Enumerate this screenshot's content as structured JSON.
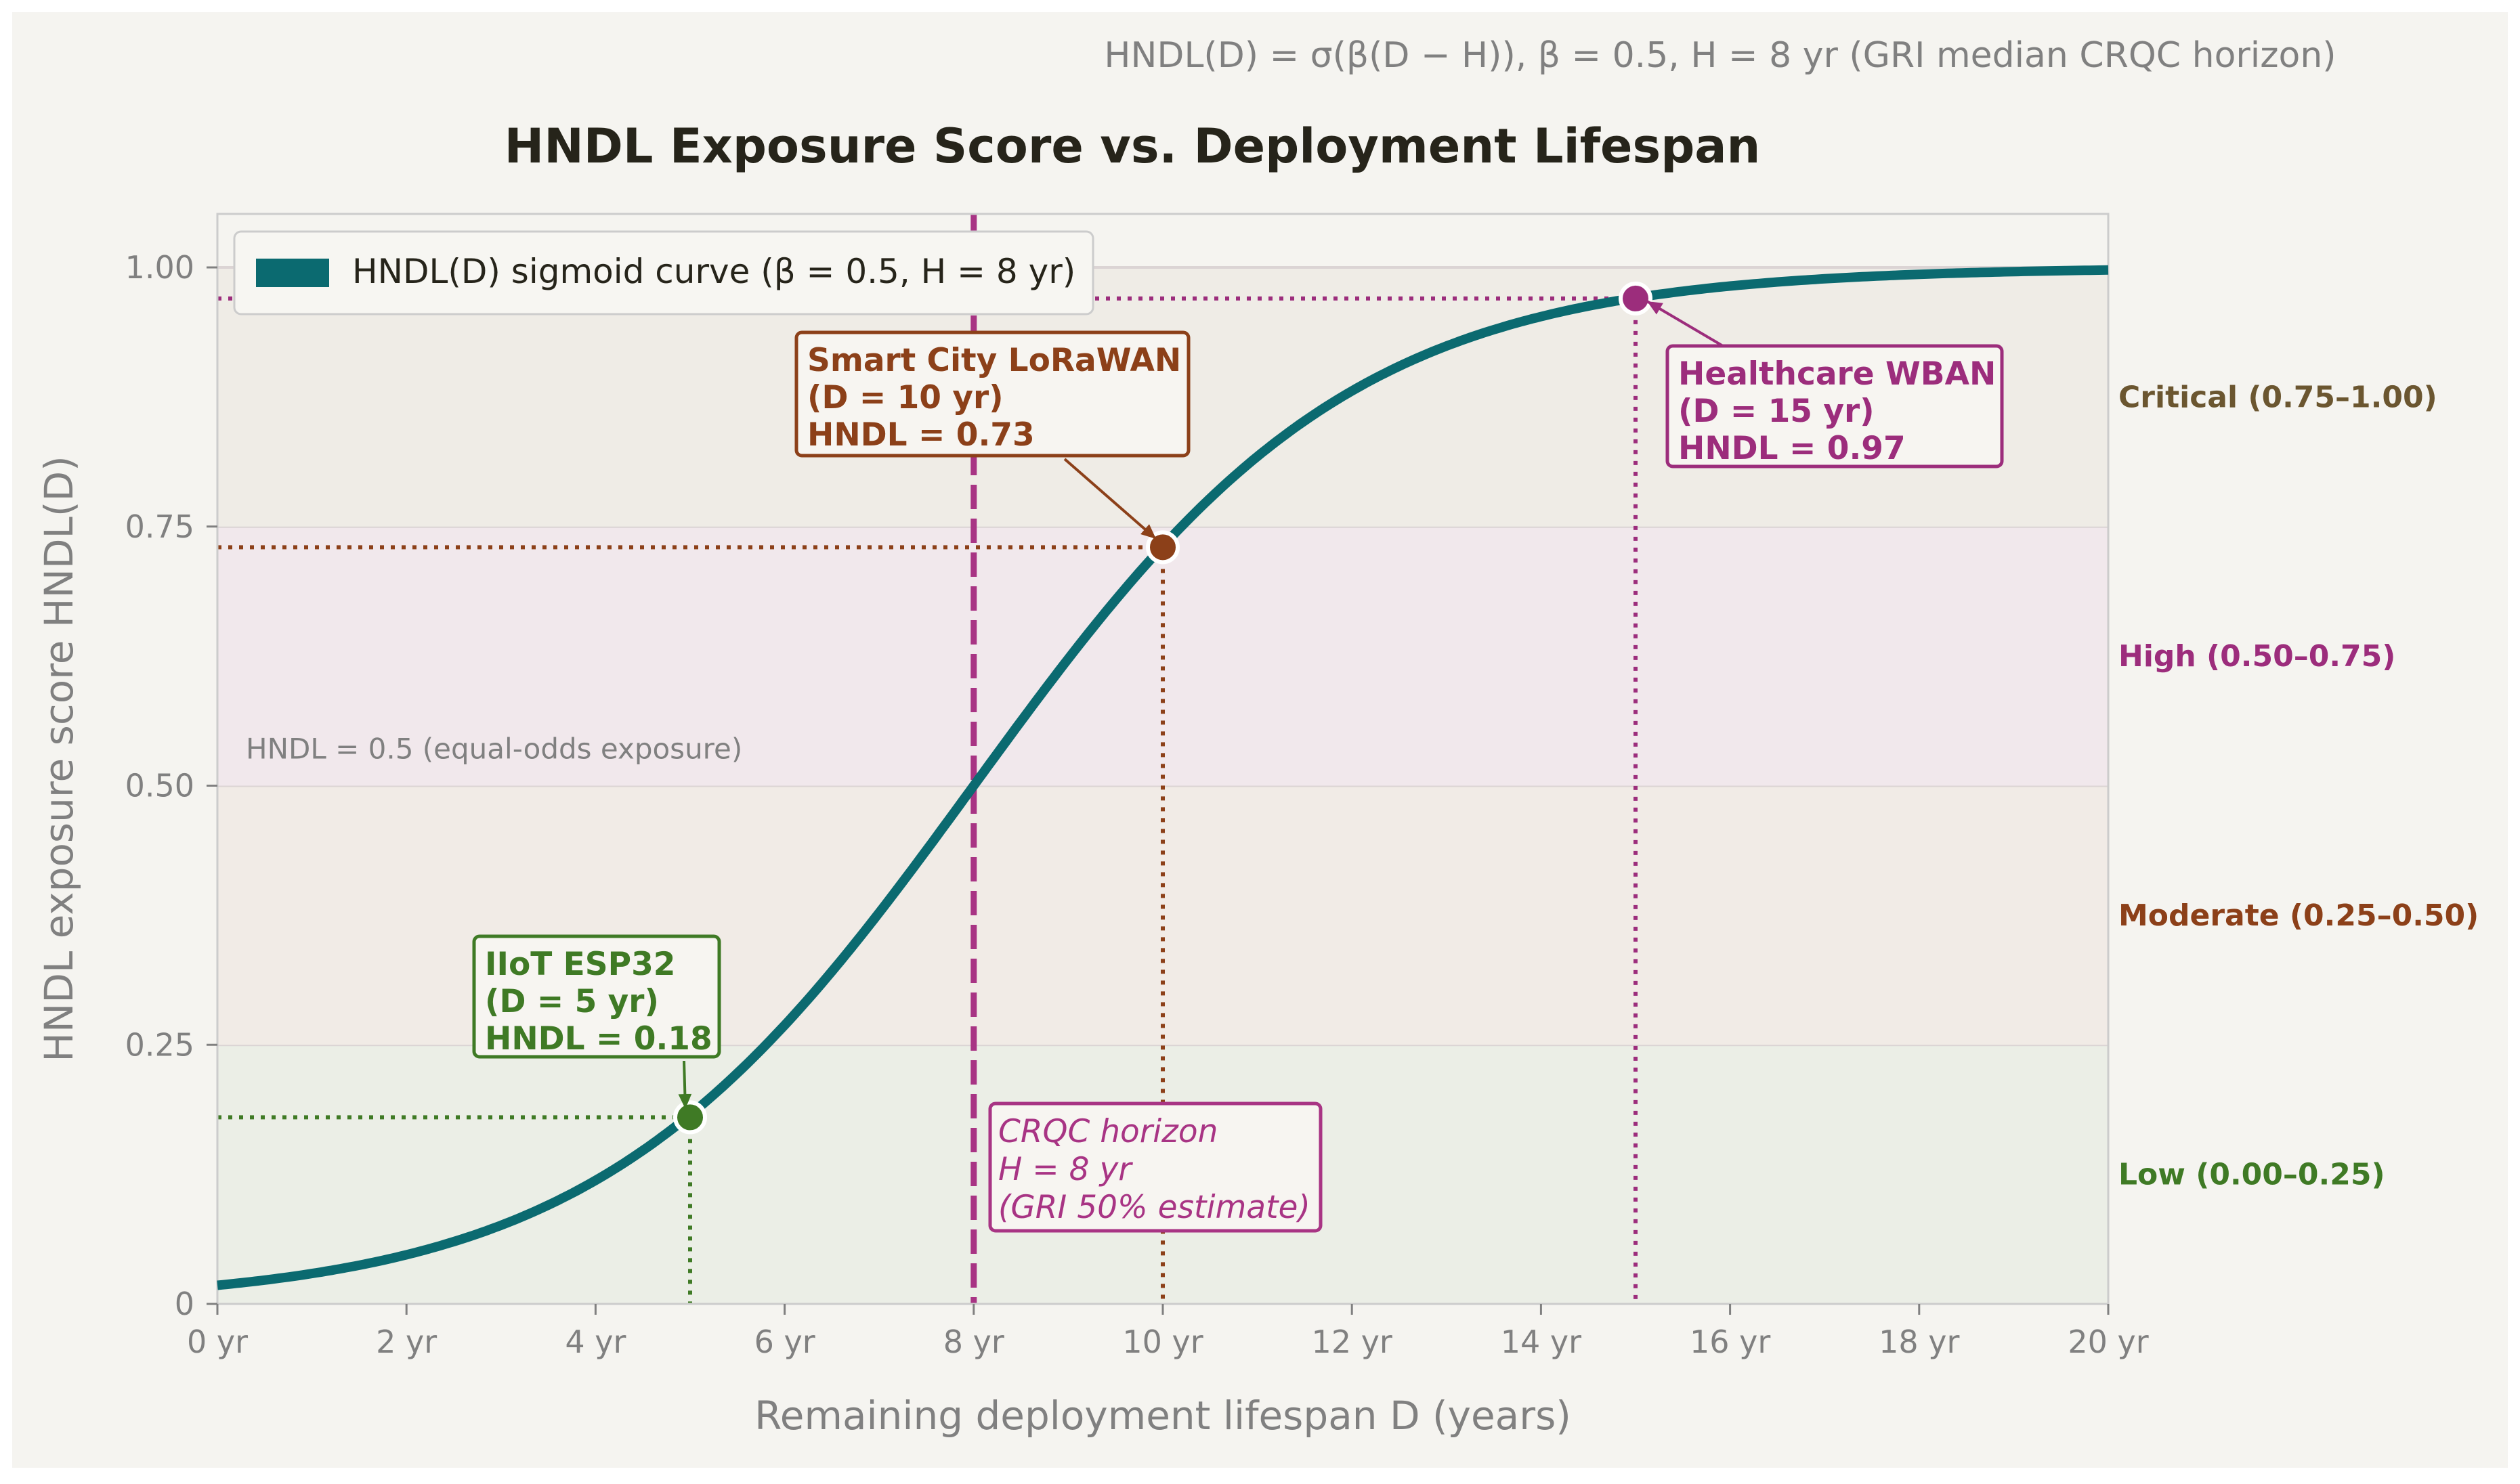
{
  "subtitle": "HNDL(D) = σ(β(D − H)), β = 0.5, H = 8 yr  (GRI median CRQC horizon)",
  "colors": {
    "background": "#f5f4f0",
    "curve": "#0b6a70",
    "iiot": "#3f7a25",
    "smartcity": "#8c4019",
    "healthcare": "#9c2d7c",
    "horizon": "#a83484",
    "axis_text": "#808080",
    "title_text": "#26241a",
    "critical_label": "#6b5630"
  },
  "chart_data": {
    "type": "line",
    "title": "HNDL Exposure Score vs. Deployment Lifespan",
    "xlabel": "Remaining deployment lifespan D (years)",
    "ylabel": "HNDL exposure score HNDL(D)",
    "xlim": [
      0,
      20
    ],
    "ylim": [
      0,
      1.05
    ],
    "x_ticks": [
      0,
      2,
      4,
      6,
      8,
      10,
      12,
      14,
      16,
      18,
      20
    ],
    "x_tick_labels": [
      "0 yr",
      "2 yr",
      "4 yr",
      "6 yr",
      "8 yr",
      "10 yr",
      "12 yr",
      "14 yr",
      "16 yr",
      "18 yr",
      "20 yr"
    ],
    "y_ticks": [
      0,
      0.25,
      0.5,
      0.75,
      1.0
    ],
    "y_tick_labels": [
      "0",
      "0.25",
      "0.50",
      "0.75",
      "1.00"
    ],
    "grid": false,
    "legend_position": "top-left",
    "curve": {
      "name": "HNDL(D) sigmoid curve  (β = 0.5, H = 8 yr)",
      "beta": 0.5,
      "H": 8,
      "x_range": [
        0,
        20
      ]
    },
    "bands": [
      {
        "label": "Low (0.00–0.25)",
        "y0": 0.0,
        "y1": 0.25,
        "fill": "#ebeee6",
        "text_color": "#3f7a25"
      },
      {
        "label": "Moderate (0.25–0.50)",
        "y0": 0.25,
        "y1": 0.5,
        "fill": "#f1ebe6",
        "text_color": "#8c4019"
      },
      {
        "label": "High (0.50–0.75)",
        "y0": 0.5,
        "y1": 0.75,
        "fill": "#f1e8ec",
        "text_color": "#9c2d7c"
      },
      {
        "label": "Critical (0.75–1.00)",
        "y0": 0.75,
        "y1": 1.0,
        "fill": "#efece6",
        "text_color": "#6b5630"
      }
    ],
    "reference_line": {
      "y": 0.5,
      "label": "HNDL = 0.5  (equal-odds exposure)"
    },
    "horizon": {
      "x": 8,
      "lines": [
        "CRQC horizon",
        "H = 8 yr",
        "(GRI 50% estimate)"
      ]
    },
    "points": [
      {
        "name": "IIoT ESP32",
        "x": 5,
        "y": 0.18,
        "color": "#3f7a25",
        "lines": [
          "IIoT ESP32",
          "(D = 5 yr)",
          "HNDL = 0.18"
        ]
      },
      {
        "name": "Smart City LoRaWAN",
        "x": 10,
        "y": 0.73,
        "color": "#8c4019",
        "lines": [
          "Smart City LoRaWAN",
          "(D = 10 yr)",
          "HNDL = 0.73"
        ]
      },
      {
        "name": "Healthcare WBAN",
        "x": 15,
        "y": 0.97,
        "color": "#9c2d7c",
        "lines": [
          "Healthcare WBAN",
          "(D = 15 yr)",
          "HNDL = 0.97"
        ]
      }
    ]
  }
}
